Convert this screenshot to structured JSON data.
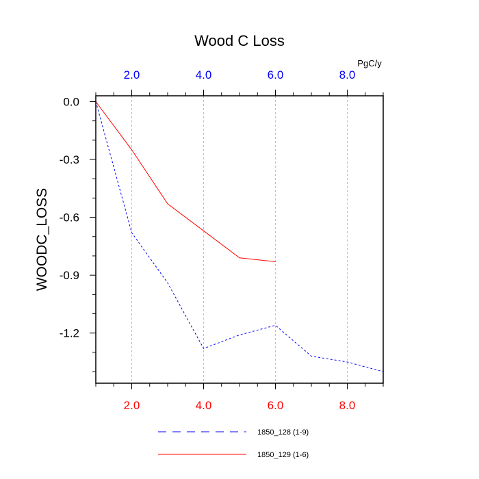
{
  "chart_data": {
    "type": "line",
    "title": "Wood C Loss",
    "units": "PgC/y",
    "ylabel": "WOODC_LOSS",
    "xlim": [
      1,
      9
    ],
    "ylim": [
      -1.46,
      0.03
    ],
    "x_ticks": [
      2,
      4,
      6,
      8
    ],
    "x_tick_labels": [
      "2.0",
      "4.0",
      "6.0",
      "8.0"
    ],
    "y_ticks": [
      0,
      -0.3,
      -0.6,
      -0.9,
      -1.2
    ],
    "y_tick_labels": [
      "0.0",
      "-0.3",
      "-0.6",
      "-0.9",
      "-1.2"
    ],
    "y_minor_step": 0.1,
    "x_minor_step": 0.5,
    "grid": "vertical dashed at major x ticks",
    "colors": {
      "bottom_tick_labels": "#ff0000",
      "top_tick_labels": "#0000ff",
      "series_1": "#0000ff",
      "series_2": "#ff0000"
    },
    "legend_position": "bottom",
    "series": [
      {
        "name": "1850_128 (1-9)",
        "style": "dashed",
        "color": "#0000ff",
        "x": [
          1,
          2,
          3,
          4,
          5,
          6,
          7,
          8,
          9
        ],
        "y": [
          0.0,
          -0.68,
          -0.94,
          -1.28,
          -1.21,
          -1.16,
          -1.32,
          -1.35,
          -1.4
        ]
      },
      {
        "name": "1850_129 (1-6)",
        "style": "solid",
        "color": "#ff0000",
        "x": [
          1,
          2,
          3,
          4,
          5,
          6
        ],
        "y": [
          0.0,
          -0.25,
          -0.53,
          -0.67,
          -0.81,
          -0.83
        ]
      }
    ]
  }
}
